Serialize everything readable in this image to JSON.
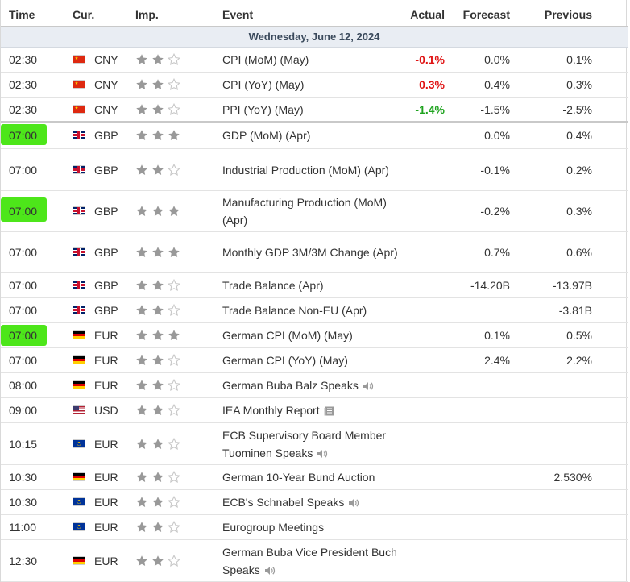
{
  "header": {
    "time": "Time",
    "currency": "Cur.",
    "importance": "Imp.",
    "event": "Event",
    "actual": "Actual",
    "forecast": "Forecast",
    "previous": "Previous"
  },
  "date_label": "Wednesday, June 12, 2024",
  "colors": {
    "star_filled": "#999999",
    "star_empty": "#c8c8c8",
    "negative": "#e01515",
    "positive": "#1fa31f",
    "highlight": "#4de61a",
    "date_bg": "#e9edf3"
  },
  "rows": [
    {
      "time": "02:30",
      "flag": "china-flag-icon",
      "cur": "CNY",
      "stars": 2,
      "event": "CPI (MoM) (May)",
      "icon": "",
      "actual": "-0.1%",
      "actual_status": "neg",
      "forecast": "0.0%",
      "previous": "0.1%",
      "highlight": false
    },
    {
      "time": "02:30",
      "flag": "china-flag-icon",
      "cur": "CNY",
      "stars": 2,
      "event": "CPI (YoY) (May)",
      "icon": "",
      "actual": "0.3%",
      "actual_status": "neg",
      "forecast": "0.4%",
      "previous": "0.3%",
      "highlight": false
    },
    {
      "time": "02:30",
      "flag": "china-flag-icon",
      "cur": "CNY",
      "stars": 2,
      "event": "PPI (YoY) (May)",
      "icon": "",
      "actual": "-1.4%",
      "actual_status": "pos",
      "forecast": "-1.5%",
      "previous": "-2.5%",
      "highlight": false
    },
    {
      "time": "07:00",
      "flag": "uk-flag-icon",
      "cur": "GBP",
      "stars": 3,
      "event": "GDP (MoM) (Apr)",
      "icon": "",
      "actual": "",
      "actual_status": "",
      "forecast": "0.0%",
      "previous": "0.4%",
      "highlight": true
    },
    {
      "time": "07:00",
      "flag": "uk-flag-icon",
      "cur": "GBP",
      "stars": 2,
      "event": "Industrial Production (MoM) (Apr)",
      "icon": "",
      "actual": "",
      "actual_status": "",
      "forecast": "-0.1%",
      "previous": "0.2%",
      "highlight": false
    },
    {
      "time": "07:00",
      "flag": "uk-flag-icon",
      "cur": "GBP",
      "stars": 3,
      "event": "Manufacturing Production (MoM) (Apr)",
      "icon": "",
      "actual": "",
      "actual_status": "",
      "forecast": "-0.2%",
      "previous": "0.3%",
      "highlight": true
    },
    {
      "time": "07:00",
      "flag": "uk-flag-icon",
      "cur": "GBP",
      "stars": 3,
      "event": "Monthly GDP 3M/3M Change (Apr)",
      "icon": "",
      "actual": "",
      "actual_status": "",
      "forecast": "0.7%",
      "previous": "0.6%",
      "highlight": false
    },
    {
      "time": "07:00",
      "flag": "uk-flag-icon",
      "cur": "GBP",
      "stars": 2,
      "event": "Trade Balance (Apr)",
      "icon": "",
      "actual": "",
      "actual_status": "",
      "forecast": "-14.20B",
      "previous": "-13.97B",
      "highlight": false
    },
    {
      "time": "07:00",
      "flag": "uk-flag-icon",
      "cur": "GBP",
      "stars": 2,
      "event": "Trade Balance Non-EU (Apr)",
      "icon": "",
      "actual": "",
      "actual_status": "",
      "forecast": "",
      "previous": "-3.81B",
      "highlight": false
    },
    {
      "time": "07:00",
      "flag": "germany-flag-icon",
      "cur": "EUR",
      "stars": 3,
      "event": "German CPI (MoM) (May)",
      "icon": "",
      "actual": "",
      "actual_status": "",
      "forecast": "0.1%",
      "previous": "0.5%",
      "highlight": true
    },
    {
      "time": "07:00",
      "flag": "germany-flag-icon",
      "cur": "EUR",
      "stars": 2,
      "event": "German CPI (YoY) (May)",
      "icon": "",
      "actual": "",
      "actual_status": "",
      "forecast": "2.4%",
      "previous": "2.2%",
      "highlight": false
    },
    {
      "time": "08:00",
      "flag": "germany-flag-icon",
      "cur": "EUR",
      "stars": 2,
      "event": "German Buba Balz Speaks",
      "icon": "speaker-icon",
      "actual": "",
      "actual_status": "",
      "forecast": "",
      "previous": "",
      "highlight": false
    },
    {
      "time": "09:00",
      "flag": "usa-flag-icon",
      "cur": "USD",
      "stars": 2,
      "event": "IEA Monthly Report",
      "icon": "report-icon",
      "actual": "",
      "actual_status": "",
      "forecast": "",
      "previous": "",
      "highlight": false
    },
    {
      "time": "10:15",
      "flag": "eu-flag-icon",
      "cur": "EUR",
      "stars": 2,
      "event": "ECB Supervisory Board Member Tuominen Speaks",
      "icon": "speaker-icon",
      "actual": "",
      "actual_status": "",
      "forecast": "",
      "previous": "",
      "highlight": false
    },
    {
      "time": "10:30",
      "flag": "germany-flag-icon",
      "cur": "EUR",
      "stars": 2,
      "event": "German 10-Year Bund Auction",
      "icon": "",
      "actual": "",
      "actual_status": "",
      "forecast": "",
      "previous": "2.530%",
      "highlight": false
    },
    {
      "time": "10:30",
      "flag": "eu-flag-icon",
      "cur": "EUR",
      "stars": 2,
      "event": "ECB's Schnabel Speaks",
      "icon": "speaker-icon",
      "actual": "",
      "actual_status": "",
      "forecast": "",
      "previous": "",
      "highlight": false
    },
    {
      "time": "11:00",
      "flag": "eu-flag-icon",
      "cur": "EUR",
      "stars": 2,
      "event": "Eurogroup Meetings",
      "icon": "",
      "actual": "",
      "actual_status": "",
      "forecast": "",
      "previous": "",
      "highlight": false
    },
    {
      "time": "12:30",
      "flag": "germany-flag-icon",
      "cur": "EUR",
      "stars": 2,
      "event": "German Buba Vice President Buch Speaks",
      "icon": "speaker-icon",
      "actual": "",
      "actual_status": "",
      "forecast": "",
      "previous": "",
      "highlight": false
    }
  ]
}
